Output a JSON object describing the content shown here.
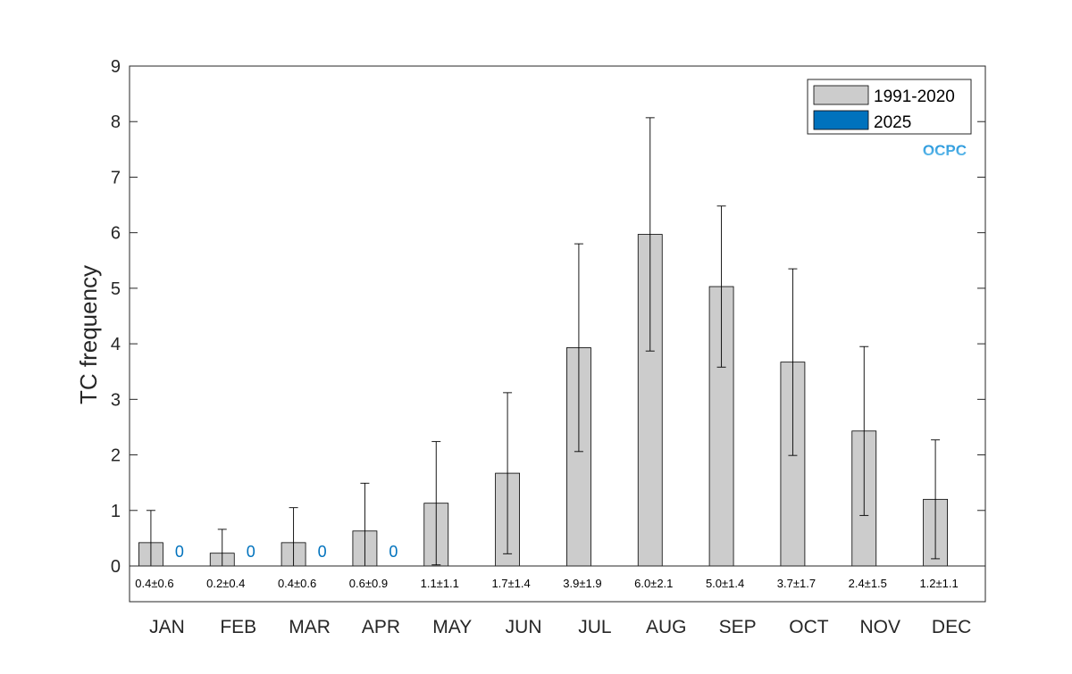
{
  "chart_data": {
    "type": "bar",
    "ylabel": "TC frequency",
    "xlabel": "",
    "ylim": [
      0,
      9
    ],
    "yticks": [
      0,
      1,
      2,
      3,
      4,
      5,
      6,
      7,
      8,
      9
    ],
    "grid": false,
    "legend_position": "top-right",
    "categories": [
      "JAN",
      "FEB",
      "MAR",
      "APR",
      "MAY",
      "JUN",
      "JUL",
      "AUG",
      "SEP",
      "OCT",
      "NOV",
      "DEC"
    ],
    "series": [
      {
        "name": "1991-2020",
        "color": "#cccccc",
        "values": [
          0.42,
          0.23,
          0.42,
          0.63,
          1.13,
          1.67,
          3.93,
          5.97,
          5.03,
          3.67,
          2.43,
          1.2
        ],
        "error": [
          0.58,
          0.43,
          0.63,
          0.86,
          1.11,
          1.45,
          1.87,
          2.1,
          1.45,
          1.68,
          1.52,
          1.07
        ],
        "value_labels": [
          "0.4±0.6",
          "0.2±0.4",
          "0.4±0.6",
          "0.6±0.9",
          "1.1±1.1",
          "1.7±1.4",
          "3.9±1.9",
          "6.0±2.1",
          "5.0±1.4",
          "3.7±1.7",
          "2.4±1.5",
          "1.2±1.1"
        ]
      },
      {
        "name": "2025",
        "color": "#0072bd",
        "values": [
          0,
          0,
          0,
          0,
          null,
          null,
          null,
          null,
          null,
          null,
          null,
          null
        ],
        "value_labels": [
          "0",
          "0",
          "0",
          "0",
          "",
          "",
          "",
          "",
          "",
          "",
          "",
          ""
        ]
      }
    ]
  },
  "logo": {
    "text": "OCPC",
    "colors": [
      "#1a8fd8",
      "#6fc3ee"
    ]
  }
}
